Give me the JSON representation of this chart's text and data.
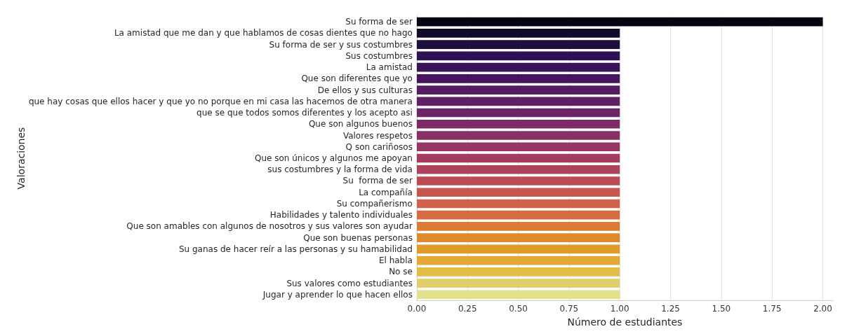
{
  "chart_data": {
    "type": "bar",
    "orientation": "horizontal",
    "xlabel": "Número de estudiantes",
    "ylabel": "Valoraciones",
    "categories": [
      "Su forma de ser",
      "La amistad que me dan y que hablamos de cosas dientes que no hago",
      "Su forma de ser y sus costumbres",
      "Sus costumbres",
      "La amistad",
      "Que son diferentes que yo",
      "De ellos y sus culturas",
      "que hay cosas que ellos hacer y que yo no porque en mi casa las hacemos de otra manera",
      "que se que todos somos diferentes y los acepto asi",
      "Que son algunos buenos",
      "Valores respetos",
      "Q son cariñosos",
      "Que son únicos y algunos me apoyan",
      "sus costumbres y la forma de vida",
      "Su  forma de ser",
      "La compañía",
      "Su compañerismo",
      "Habilidades y talento individuales",
      "Que son amables con algunos de nosotros y sus valores son ayudar",
      "Que son buenas personas",
      "Su ganas de hacer reír a las personas y su hamabilidad",
      "El habla",
      "No se",
      "Sus valores como estudiantes",
      "Jugar y aprender lo que hacen ellos"
    ],
    "values": [
      2,
      1,
      1,
      1,
      1,
      1,
      1,
      1,
      1,
      1,
      1,
      1,
      1,
      1,
      1,
      1,
      1,
      1,
      1,
      1,
      1,
      1,
      1,
      1,
      1
    ],
    "colors": [
      "#050414",
      "#110a2a",
      "#1e0f3c",
      "#2c1154",
      "#3a1259",
      "#47155f",
      "#541c63",
      "#612066",
      "#6e2567",
      "#7b2b67",
      "#883066",
      "#953664",
      "#a23d60",
      "#ae445b",
      "#bb4c55",
      "#c65650",
      "#d0614a",
      "#d66b3f",
      "#db7a35",
      "#de8a2b",
      "#e09a28",
      "#e2aa35",
      "#e3bb47",
      "#e2cd6b",
      "#e4e18c"
    ],
    "xlim": [
      0,
      2.05
    ],
    "xticks": [
      {
        "value": 0,
        "label": "0.00"
      },
      {
        "value": 0.25,
        "label": "0.25"
      },
      {
        "value": 0.5,
        "label": "0.50"
      },
      {
        "value": 0.75,
        "label": "0.75"
      },
      {
        "value": 1,
        "label": "1.00"
      },
      {
        "value": 1.25,
        "label": "1.25"
      },
      {
        "value": 1.5,
        "label": "1.50"
      },
      {
        "value": 1.75,
        "label": "1.75"
      },
      {
        "value": 2,
        "label": "2.00"
      }
    ],
    "grid": "x"
  }
}
